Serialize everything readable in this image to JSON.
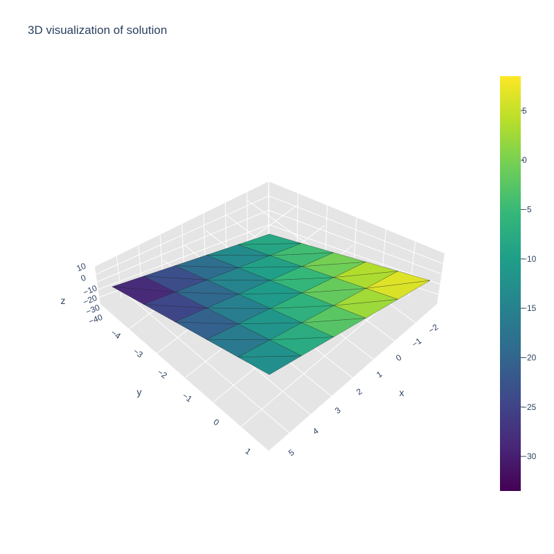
{
  "chart_data": {
    "type": "surface",
    "title": "3D visualization of solution",
    "xlabel": "x",
    "ylabel": "y",
    "zlabel": "z",
    "x_ticks": [
      "−2",
      "−1",
      "0",
      "1",
      "2",
      "3",
      "4",
      "5"
    ],
    "y_ticks": [
      "−4",
      "−3",
      "−2",
      "−1",
      "0",
      "1"
    ],
    "z_ticks": [
      "10",
      "0",
      "−10",
      "−20",
      "−30",
      "−40"
    ],
    "x": [
      -2.5,
      -1,
      0.5,
      2,
      3.5,
      5
    ],
    "y": [
      -4.5,
      -3.3,
      -2.1,
      -0.9,
      0.3,
      1.5
    ],
    "z": [
      [
        -33,
        -28,
        -23,
        -18,
        -13,
        -8
      ],
      [
        -29,
        -24,
        -19,
        -14,
        -9,
        -4
      ],
      [
        -25,
        -20,
        -15,
        -10,
        -5,
        0
      ],
      [
        -21,
        -16,
        -11,
        -6,
        -1,
        4
      ],
      [
        -17,
        -12,
        -7,
        -2,
        3,
        8
      ],
      [
        -13,
        -8,
        -3,
        2,
        7,
        8.5
      ]
    ],
    "colorscale": "Viridis",
    "colorbar": {
      "ticks": [
        "5",
        "0",
        "−5",
        "−10",
        "−15",
        "−20",
        "−25",
        "−30"
      ],
      "tick_values": [
        5,
        0,
        -5,
        -10,
        -15,
        -20,
        -25,
        -30
      ],
      "range": [
        -33.5,
        8.5
      ]
    },
    "grid": true
  }
}
